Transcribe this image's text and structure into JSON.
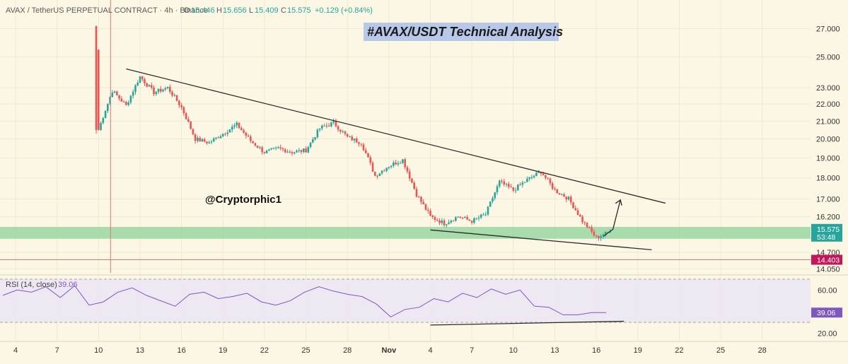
{
  "header": {
    "symbol": "AVAX / TetherUS PERPETUAL CONTRACT · 4h · Binance",
    "o_label": "O",
    "o_value": "15.446",
    "h_label": "H",
    "h_value": "15.656",
    "l_label": "L",
    "l_value": "15.409",
    "c_label": "C",
    "c_value": "15.575",
    "change": "+0.129 (+0.84%)"
  },
  "title": "#AVAX/USDT Technical Analysis",
  "watermark": "@Cryptorphic1",
  "chart_data": {
    "type": "candlestick",
    "timeframe": "4h",
    "y_ticks": [
      "27.000",
      "25.000",
      "23.000",
      "22.000",
      "21.000",
      "20.000",
      "19.000",
      "18.000",
      "17.000",
      "16.200",
      "14.700",
      "14.050"
    ],
    "ylim": [
      13.9,
      27.2
    ],
    "price_scale": "log",
    "x_ticks": [
      "4",
      "7",
      "10",
      "13",
      "16",
      "19",
      "22",
      "25",
      "28",
      "Nov",
      "4",
      "7",
      "10",
      "13",
      "16",
      "19",
      "22",
      "25",
      "28"
    ],
    "last_price": "15.575",
    "countdown": "53:48",
    "red_line_price": "14.403",
    "support_zone": [
      15.25,
      15.75
    ],
    "closes_outline": [
      {
        "date": "Oct 10",
        "price": 20.5
      },
      {
        "date": "Oct 11",
        "price": 22.8
      },
      {
        "date": "Oct 12",
        "price": 21.9
      },
      {
        "date": "Oct 13",
        "price": 23.7
      },
      {
        "date": "Oct 14",
        "price": 22.7
      },
      {
        "date": "Oct 15",
        "price": 23.0
      },
      {
        "date": "Oct 16",
        "price": 21.8
      },
      {
        "date": "Oct 17",
        "price": 20.0
      },
      {
        "date": "Oct 18",
        "price": 19.8
      },
      {
        "date": "Oct 19",
        "price": 20.3
      },
      {
        "date": "Oct 20",
        "price": 20.8
      },
      {
        "date": "Oct 21",
        "price": 19.9
      },
      {
        "date": "Oct 22",
        "price": 19.3
      },
      {
        "date": "Oct 23",
        "price": 19.5
      },
      {
        "date": "Oct 24",
        "price": 19.3
      },
      {
        "date": "Oct 25",
        "price": 19.4
      },
      {
        "date": "Oct 26",
        "price": 20.6
      },
      {
        "date": "Oct 27",
        "price": 20.9
      },
      {
        "date": "Oct 28",
        "price": 20.1
      },
      {
        "date": "Oct 29",
        "price": 19.8
      },
      {
        "date": "Oct 30",
        "price": 18.1
      },
      {
        "date": "Oct 31",
        "price": 18.6
      },
      {
        "date": "Nov 1",
        "price": 18.9
      },
      {
        "date": "Nov 2",
        "price": 17.2
      },
      {
        "date": "Nov 3",
        "price": 16.2
      },
      {
        "date": "Nov 4",
        "price": 15.9
      },
      {
        "date": "Nov 5",
        "price": 16.2
      },
      {
        "date": "Nov 6",
        "price": 16.0
      },
      {
        "date": "Nov 7",
        "price": 16.3
      },
      {
        "date": "Nov 8",
        "price": 17.8
      },
      {
        "date": "Nov 9",
        "price": 17.4
      },
      {
        "date": "Nov 10",
        "price": 17.9
      },
      {
        "date": "Nov 11",
        "price": 18.3
      },
      {
        "date": "Nov 12",
        "price": 17.4
      },
      {
        "date": "Nov 13",
        "price": 17.0
      },
      {
        "date": "Nov 14",
        "price": 16.0
      },
      {
        "date": "Nov 15",
        "price": 15.3
      },
      {
        "date": "Nov 16",
        "price": 15.55
      }
    ],
    "trendlines": [
      {
        "name": "upper",
        "start": {
          "date": "Oct 12",
          "price": 24.2
        },
        "end": {
          "date": "Nov 20",
          "price": 16.8
        }
      },
      {
        "name": "lower",
        "start": {
          "date": "Nov 3",
          "price": 15.62
        },
        "end": {
          "date": "Nov 19",
          "price": 14.8
        }
      }
    ],
    "projection": {
      "start": {
        "date": "Nov 15",
        "price": 15.35
      },
      "mid": {
        "date": "Nov 16",
        "price": 15.65
      },
      "end": {
        "date": "Nov 17",
        "price": 16.95
      }
    },
    "rsi": {
      "label": "RSI (14, close)",
      "value": "39.06",
      "y_ticks": [
        "60.00",
        "20.00"
      ],
      "levels": [
        70,
        30
      ],
      "values": [
        55,
        60,
        58,
        63,
        53,
        64,
        46,
        49,
        58,
        62,
        55,
        50,
        45,
        56,
        58,
        52,
        54,
        57,
        49,
        46,
        50,
        58,
        63,
        59,
        56,
        54,
        47,
        35,
        42,
        44,
        52,
        49,
        57,
        53,
        61,
        56,
        60,
        45,
        44,
        37,
        37,
        39,
        39.06
      ],
      "trendline": {
        "start": {
          "date": "Nov 3",
          "rsi": 27.5
        },
        "end": {
          "date": "Nov 17",
          "rsi": 31
        }
      }
    },
    "colors": {
      "up": "#26a69a",
      "down": "#ef5350",
      "support": "#8dd39a",
      "rsi_line": "#7e57c2",
      "rsi_badge": "#7e57c2",
      "price_badge": "#26a69a",
      "red_badge": "#c2185b",
      "title_bg": "#b8c8e8"
    }
  }
}
